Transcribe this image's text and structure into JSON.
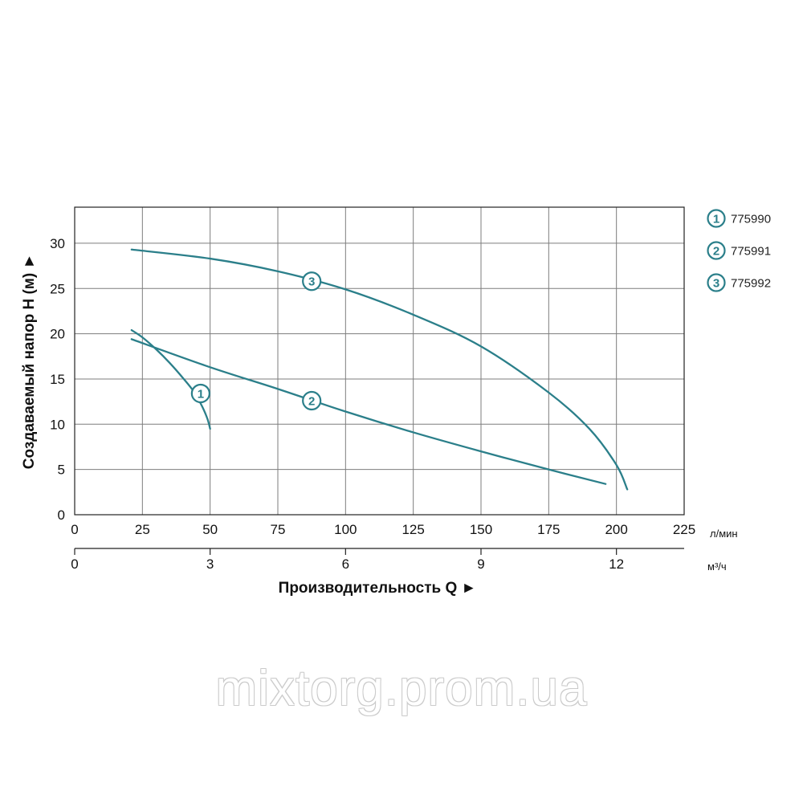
{
  "chart_data": {
    "type": "line",
    "xlabel": "Производительность Q ►",
    "ylabel": "Создаваемый напор H (м) ►",
    "x_unit": "л/мин",
    "x2_unit": "м³/ч",
    "xlim": [
      0,
      225
    ],
    "ylim": [
      0,
      34
    ],
    "x_ticks": [
      "0",
      "25",
      "50",
      "75",
      "100",
      "125",
      "150",
      "175",
      "200",
      "225"
    ],
    "x2_ticks": [
      "0",
      "3",
      "6",
      "9",
      "12"
    ],
    "y_ticks": [
      "0",
      "5",
      "10",
      "15",
      "20",
      "25",
      "30"
    ],
    "grid": true,
    "legend_position": "right",
    "colors": {
      "curve": "#2b7f8a",
      "grid": "#7d7d7d",
      "axis": "#222222"
    },
    "series": [
      {
        "id": "1",
        "name": "775990",
        "x": [
          21,
          25,
          30,
          35,
          40,
          44,
          47,
          49,
          50
        ],
        "y": [
          20.4,
          19.6,
          18.3,
          16.8,
          15.1,
          13.6,
          12.0,
          10.6,
          9.5
        ],
        "marker_x": 46.5,
        "marker_y": 13.4
      },
      {
        "id": "2",
        "name": "775991",
        "x": [
          21,
          50,
          75,
          100,
          125,
          150,
          175,
          196
        ],
        "y": [
          19.4,
          16.3,
          13.9,
          11.4,
          9.1,
          7.0,
          5.0,
          3.4
        ],
        "marker_x": 87.5,
        "marker_y": 12.6
      },
      {
        "id": "3",
        "name": "775992",
        "x": [
          21,
          50,
          75,
          100,
          125,
          150,
          175,
          190,
          200,
          204
        ],
        "y": [
          29.3,
          28.3,
          26.9,
          24.9,
          22.1,
          18.6,
          13.5,
          9.5,
          5.5,
          2.8
        ],
        "marker_x": 87.5,
        "marker_y": 25.8
      }
    ]
  },
  "legend": [
    {
      "num": "1",
      "label": "775990"
    },
    {
      "num": "2",
      "label": "775991"
    },
    {
      "num": "3",
      "label": "775992"
    }
  ],
  "watermark": "mixtorg.prom.ua"
}
